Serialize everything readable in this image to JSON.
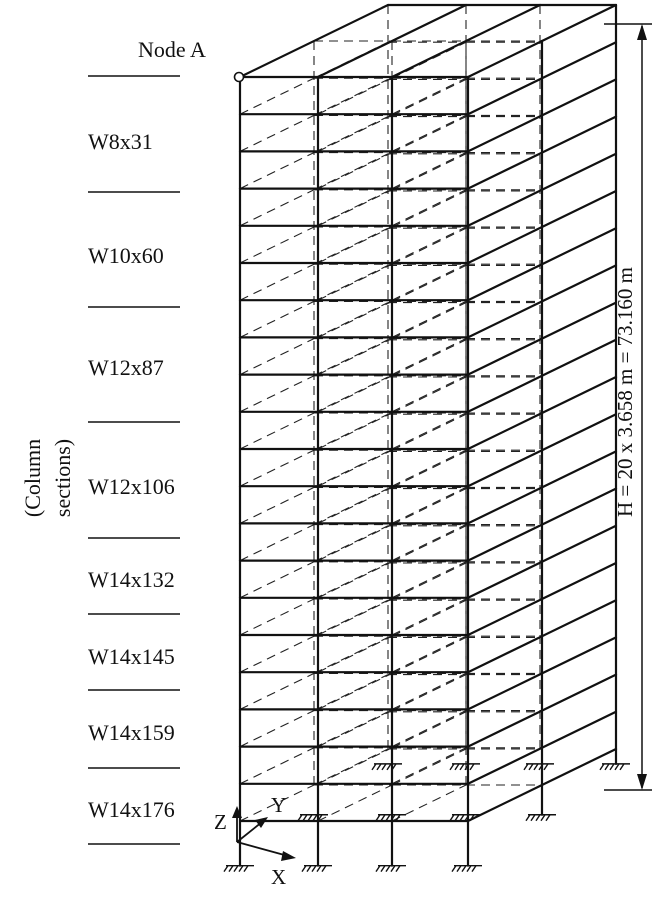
{
  "node_label": "Node A",
  "group_label_line1": "(Column",
  "group_label_line2": "sections)",
  "column_sections": [
    "W8x31",
    "W10x60",
    "W12x87",
    "W12x106",
    "W14x132",
    "W14x145",
    "W14x159",
    "W14x176"
  ],
  "height_label": "H = 20 x 3.658 m = 73.160 m",
  "axes": {
    "x": "X",
    "y": "Y",
    "z": "Z"
  }
}
